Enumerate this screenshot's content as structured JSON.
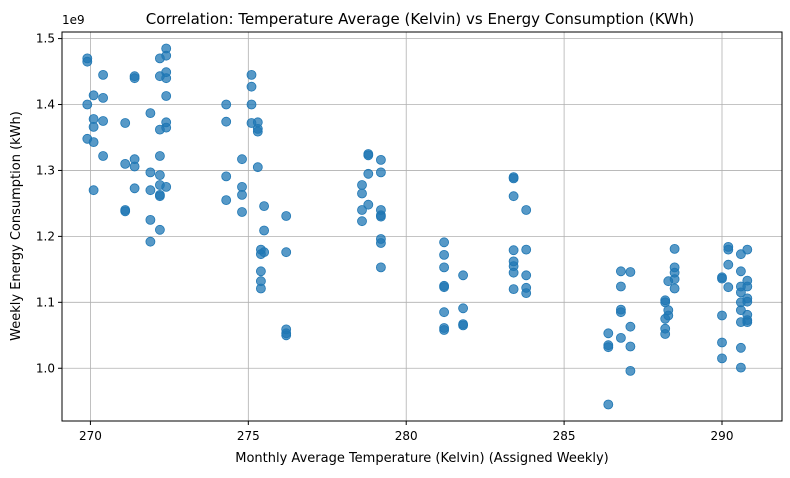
{
  "chart_data": {
    "type": "scatter",
    "title": "Correlation: Temperature Average (Kelvin) vs Energy Consumption (KWh)",
    "xlabel": "Monthly Average Temperature (Kelvin) (Assigned Weekly)",
    "ylabel": "Weekly Energy Consumption (kWh)",
    "y_offset_label": "1e9",
    "xlim": [
      269.1,
      291.9
    ],
    "ylim": [
      920000000.0,
      1510000000.0
    ],
    "x_ticks": [
      270,
      275,
      280,
      285,
      290
    ],
    "y_ticks": [
      1000000000.0,
      1100000000.0,
      1200000000.0,
      1300000000.0,
      1400000000.0,
      1500000000.0
    ],
    "x_tick_labels": [
      "270",
      "275",
      "280",
      "285",
      "290"
    ],
    "y_tick_labels": [
      "1.0",
      "1.1",
      "1.2",
      "1.3",
      "1.4",
      "1.5"
    ],
    "grid": true,
    "point_color": "#1f77b4",
    "points": [
      [
        269.9,
        1470000000.0
      ],
      [
        269.9,
        1465000000.0
      ],
      [
        269.9,
        1400000000.0
      ],
      [
        269.9,
        1348000000.0
      ],
      [
        270.1,
        1414000000.0
      ],
      [
        270.1,
        1378000000.0
      ],
      [
        270.1,
        1366000000.0
      ],
      [
        270.1,
        1343000000.0
      ],
      [
        270.1,
        1270000000.0
      ],
      [
        270.4,
        1445000000.0
      ],
      [
        270.4,
        1410000000.0
      ],
      [
        270.4,
        1375000000.0
      ],
      [
        270.4,
        1322000000.0
      ],
      [
        271.1,
        1372000000.0
      ],
      [
        271.1,
        1310000000.0
      ],
      [
        271.1,
        1240000000.0
      ],
      [
        271.1,
        1238000000.0
      ],
      [
        271.4,
        1443000000.0
      ],
      [
        271.4,
        1440000000.0
      ],
      [
        271.4,
        1317000000.0
      ],
      [
        271.4,
        1306000000.0
      ],
      [
        271.4,
        1273000000.0
      ],
      [
        271.9,
        1387000000.0
      ],
      [
        271.9,
        1297000000.0
      ],
      [
        271.9,
        1270000000.0
      ],
      [
        271.9,
        1225000000.0
      ],
      [
        271.9,
        1192000000.0
      ],
      [
        272.2,
        1470000000.0
      ],
      [
        272.2,
        1443000000.0
      ],
      [
        272.2,
        1362000000.0
      ],
      [
        272.2,
        1322000000.0
      ],
      [
        272.2,
        1293000000.0
      ],
      [
        272.2,
        1278000000.0
      ],
      [
        272.2,
        1263000000.0
      ],
      [
        272.2,
        1261000000.0
      ],
      [
        272.2,
        1210000000.0
      ],
      [
        272.4,
        1485000000.0
      ],
      [
        272.4,
        1474000000.0
      ],
      [
        272.4,
        1449000000.0
      ],
      [
        272.4,
        1440000000.0
      ],
      [
        272.4,
        1413000000.0
      ],
      [
        272.4,
        1373000000.0
      ],
      [
        272.4,
        1365000000.0
      ],
      [
        272.4,
        1275000000.0
      ],
      [
        274.3,
        1400000000.0
      ],
      [
        274.3,
        1374000000.0
      ],
      [
        274.3,
        1291000000.0
      ],
      [
        274.3,
        1255000000.0
      ],
      [
        274.8,
        1317000000.0
      ],
      [
        274.8,
        1275000000.0
      ],
      [
        274.8,
        1263000000.0
      ],
      [
        274.8,
        1237000000.0
      ],
      [
        275.1,
        1445000000.0
      ],
      [
        275.1,
        1427000000.0
      ],
      [
        275.1,
        1400000000.0
      ],
      [
        275.1,
        1372000000.0
      ],
      [
        275.3,
        1373000000.0
      ],
      [
        275.3,
        1363000000.0
      ],
      [
        275.3,
        1359000000.0
      ],
      [
        275.3,
        1305000000.0
      ],
      [
        275.4,
        1180000000.0
      ],
      [
        275.4,
        1173000000.0
      ],
      [
        275.4,
        1147000000.0
      ],
      [
        275.4,
        1132000000.0
      ],
      [
        275.4,
        1121000000.0
      ],
      [
        275.5,
        1246000000.0
      ],
      [
        275.5,
        1209000000.0
      ],
      [
        275.5,
        1176000000.0
      ],
      [
        276.2,
        1231000000.0
      ],
      [
        276.2,
        1176000000.0
      ],
      [
        276.2,
        1059000000.0
      ],
      [
        276.2,
        1053000000.0
      ],
      [
        276.2,
        1050000000.0
      ],
      [
        278.6,
        1278000000.0
      ],
      [
        278.6,
        1265000000.0
      ],
      [
        278.6,
        1240000000.0
      ],
      [
        278.6,
        1223000000.0
      ],
      [
        278.8,
        1325000000.0
      ],
      [
        278.8,
        1323000000.0
      ],
      [
        278.8,
        1295000000.0
      ],
      [
        278.8,
        1248000000.0
      ],
      [
        279.2,
        1316000000.0
      ],
      [
        279.2,
        1297000000.0
      ],
      [
        279.2,
        1240000000.0
      ],
      [
        279.2,
        1232000000.0
      ],
      [
        279.2,
        1230000000.0
      ],
      [
        279.2,
        1196000000.0
      ],
      [
        279.2,
        1190000000.0
      ],
      [
        279.2,
        1153000000.0
      ],
      [
        281.2,
        1191000000.0
      ],
      [
        281.2,
        1172000000.0
      ],
      [
        281.2,
        1153000000.0
      ],
      [
        281.2,
        1125000000.0
      ],
      [
        281.2,
        1123000000.0
      ],
      [
        281.2,
        1085000000.0
      ],
      [
        281.2,
        1061000000.0
      ],
      [
        281.2,
        1058000000.0
      ],
      [
        281.8,
        1141000000.0
      ],
      [
        281.8,
        1091000000.0
      ],
      [
        281.8,
        1067000000.0
      ],
      [
        281.8,
        1065000000.0
      ],
      [
        283.4,
        1290000000.0
      ],
      [
        283.4,
        1288000000.0
      ],
      [
        283.4,
        1261000000.0
      ],
      [
        283.4,
        1179000000.0
      ],
      [
        283.4,
        1162000000.0
      ],
      [
        283.4,
        1155000000.0
      ],
      [
        283.4,
        1145000000.0
      ],
      [
        283.4,
        1120000000.0
      ],
      [
        283.8,
        1240000000.0
      ],
      [
        283.8,
        1180000000.0
      ],
      [
        283.8,
        1141000000.0
      ],
      [
        283.8,
        1122000000.0
      ],
      [
        283.8,
        1114000000.0
      ],
      [
        286.4,
        1053000000.0
      ],
      [
        286.4,
        1035000000.0
      ],
      [
        286.4,
        1032000000.0
      ],
      [
        286.4,
        945000000.0
      ],
      [
        286.8,
        1147000000.0
      ],
      [
        286.8,
        1124000000.0
      ],
      [
        286.8,
        1089000000.0
      ],
      [
        286.8,
        1085000000.0
      ],
      [
        286.8,
        1046000000.0
      ],
      [
        287.1,
        1146000000.0
      ],
      [
        287.1,
        1063000000.0
      ],
      [
        287.1,
        1033000000.0
      ],
      [
        287.1,
        996000000.0
      ],
      [
        288.2,
        1103000000.0
      ],
      [
        288.2,
        1100000000.0
      ],
      [
        288.2,
        1075000000.0
      ],
      [
        288.2,
        1060000000.0
      ],
      [
        288.2,
        1052000000.0
      ],
      [
        288.3,
        1132000000.0
      ],
      [
        288.3,
        1088000000.0
      ],
      [
        288.3,
        1080000000.0
      ],
      [
        288.5,
        1181000000.0
      ],
      [
        288.5,
        1153000000.0
      ],
      [
        288.5,
        1145000000.0
      ],
      [
        288.5,
        1135000000.0
      ],
      [
        288.5,
        1121000000.0
      ],
      [
        290.0,
        1138000000.0
      ],
      [
        290.0,
        1136000000.0
      ],
      [
        290.0,
        1080000000.0
      ],
      [
        290.0,
        1039000000.0
      ],
      [
        290.0,
        1015000000.0
      ],
      [
        290.2,
        1184000000.0
      ],
      [
        290.2,
        1180000000.0
      ],
      [
        290.2,
        1157000000.0
      ],
      [
        290.2,
        1123000000.0
      ],
      [
        290.6,
        1173000000.0
      ],
      [
        290.6,
        1147000000.0
      ],
      [
        290.6,
        1124000000.0
      ],
      [
        290.6,
        1115000000.0
      ],
      [
        290.6,
        1100000000.0
      ],
      [
        290.6,
        1088000000.0
      ],
      [
        290.6,
        1070000000.0
      ],
      [
        290.6,
        1031000000.0
      ],
      [
        290.6,
        1001000000.0
      ],
      [
        290.8,
        1180000000.0
      ],
      [
        290.8,
        1133000000.0
      ],
      [
        290.8,
        1124000000.0
      ],
      [
        290.8,
        1106000000.0
      ],
      [
        290.8,
        1101000000.0
      ],
      [
        290.8,
        1081000000.0
      ],
      [
        290.8,
        1073000000.0
      ],
      [
        290.8,
        1070000000.0
      ]
    ]
  }
}
